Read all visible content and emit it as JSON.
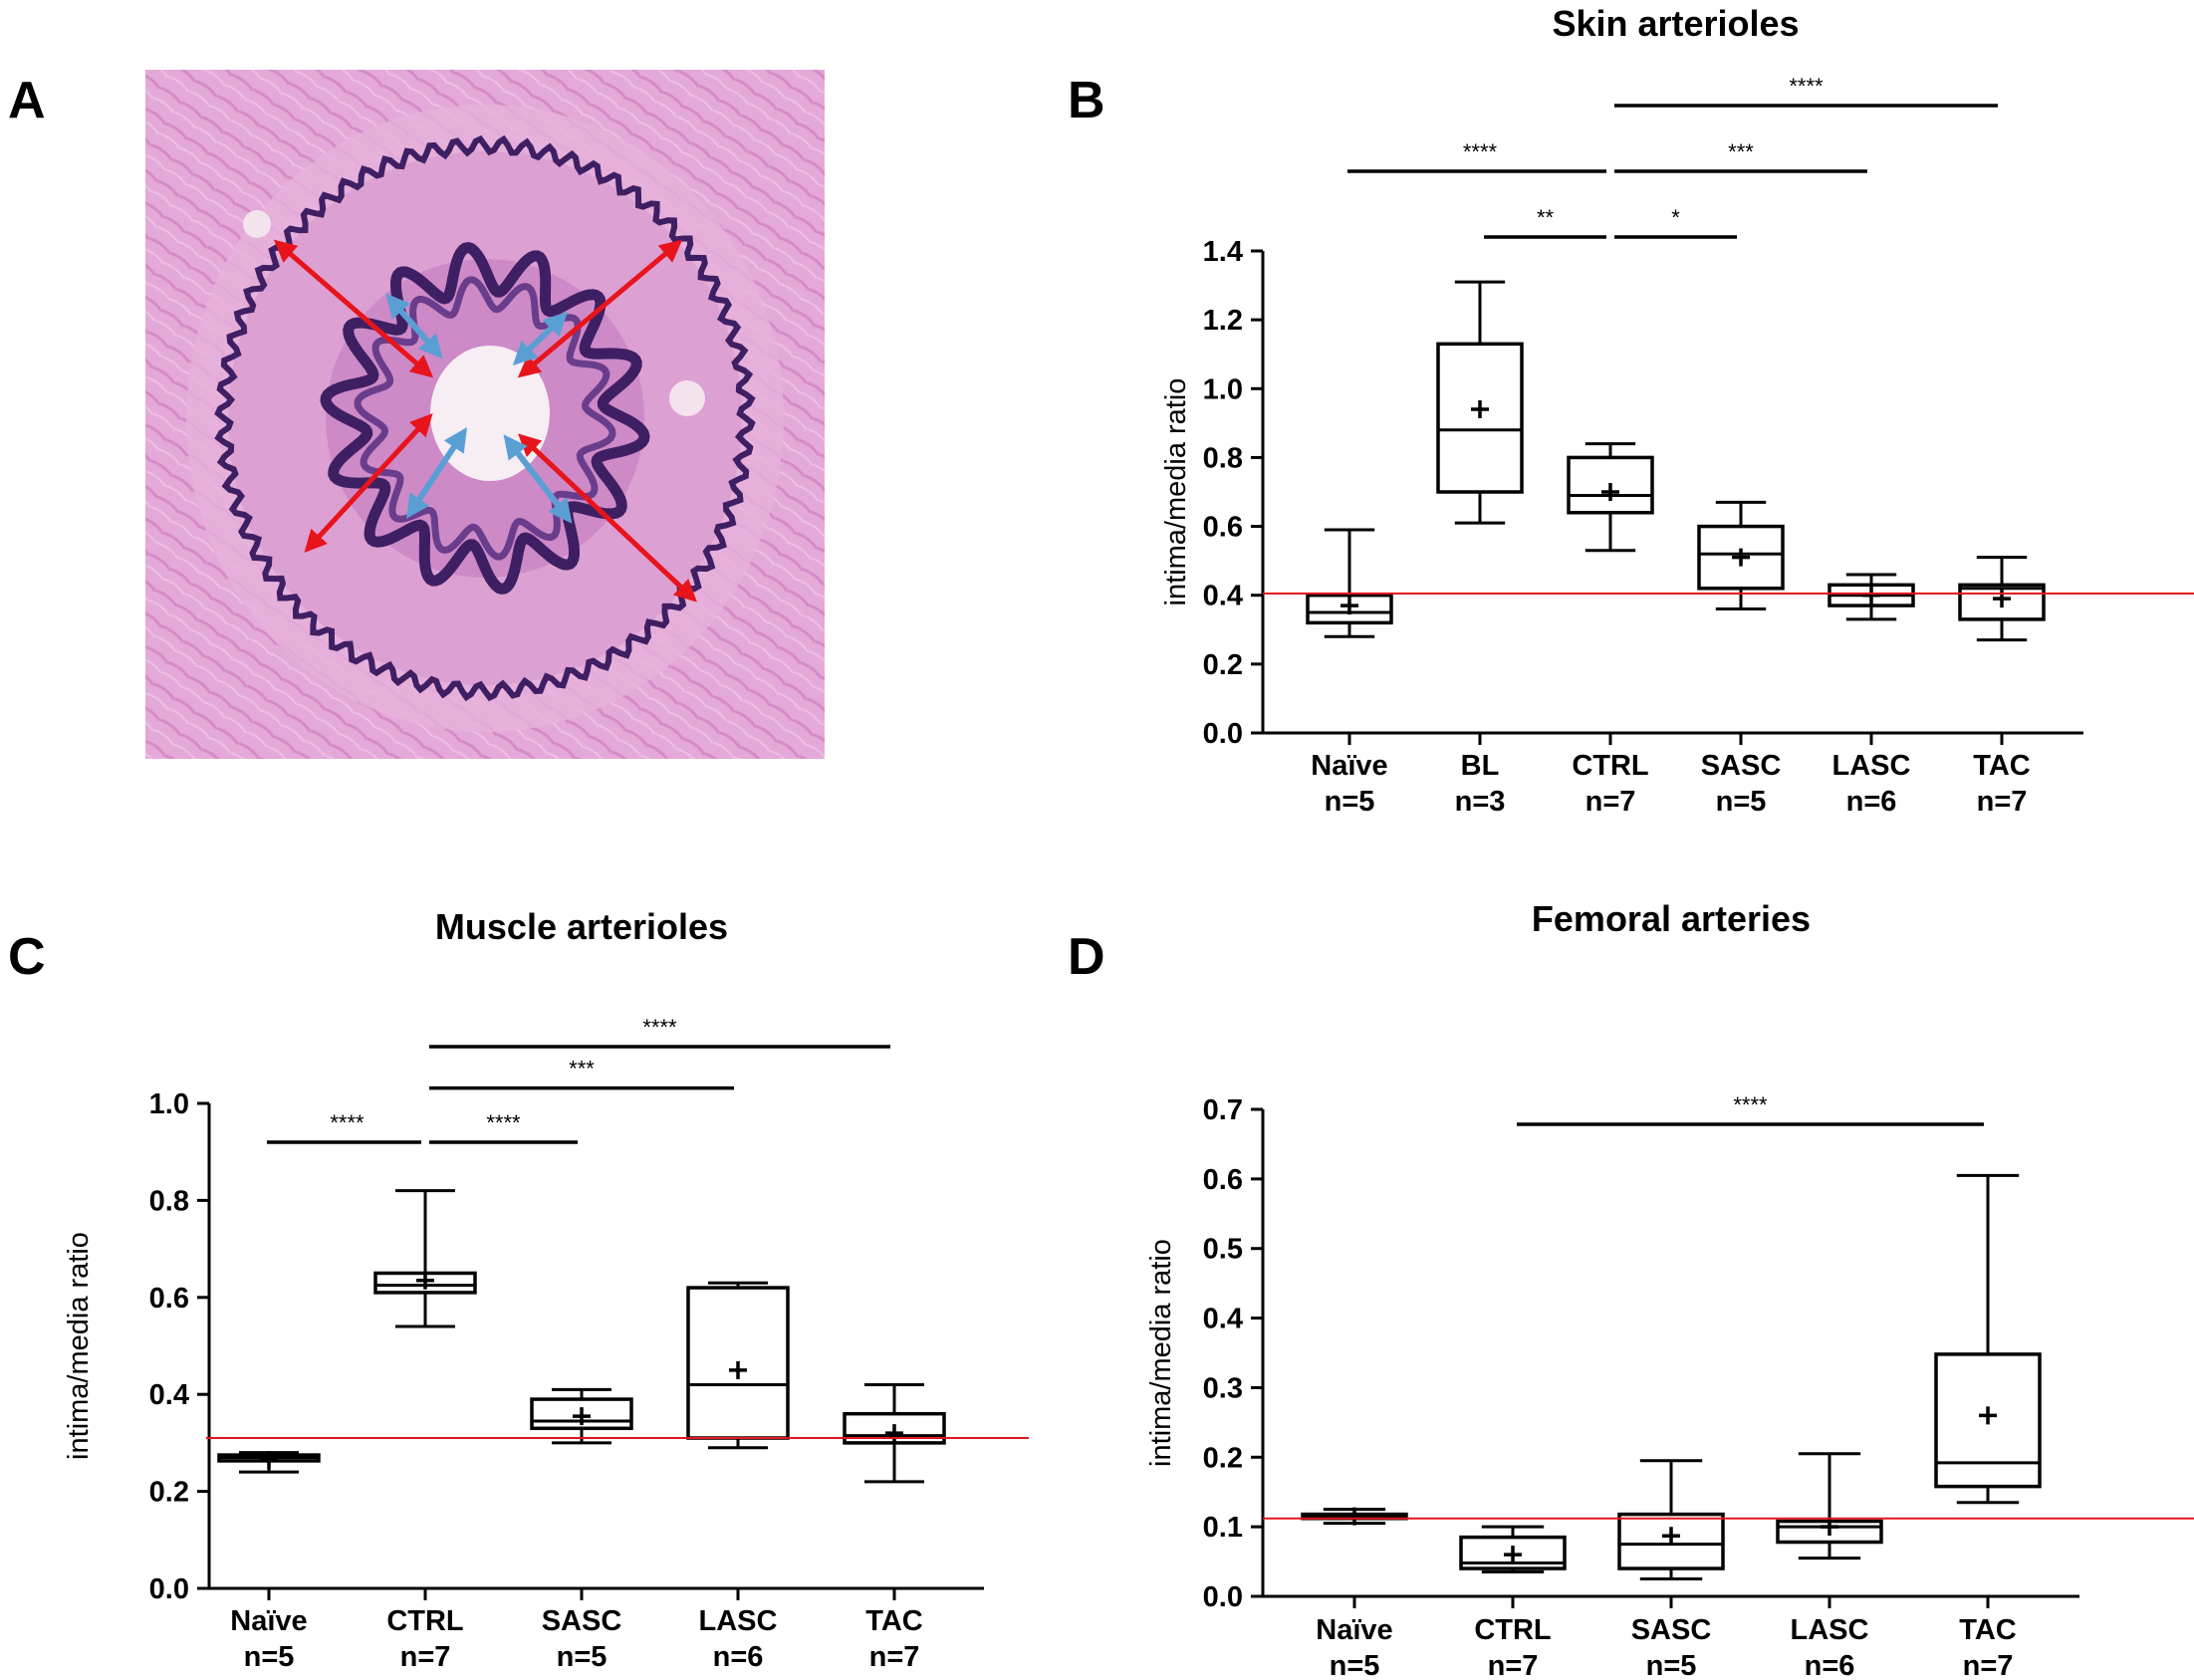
{
  "figure": {
    "panel_labels": [
      "A",
      "B",
      "C",
      "D"
    ],
    "image_panel": {
      "colors": {
        "tissue": "#e2a6d6",
        "elastic": "#3f1f63",
        "red_arrow": "#e8141c",
        "blue_arrow": "#5a9fd4",
        "lumen": "#f6eef2"
      }
    }
  },
  "chart_data": [
    {
      "type": "box",
      "panel": "B",
      "title": "Skin arterioles",
      "ylabel": "intima/media ratio",
      "ylim": [
        0,
        1.4
      ],
      "yticks": [
        "0.0",
        "0.2",
        "0.4",
        "0.6",
        "0.8",
        "1.0",
        "1.2",
        "1.4"
      ],
      "reference_line": 0.405,
      "categories": [
        {
          "name": "Naïve",
          "n": "n=5"
        },
        {
          "name": "BL",
          "n": "n=3"
        },
        {
          "name": "CTRL",
          "n": "n=7"
        },
        {
          "name": "SASC",
          "n": "n=5"
        },
        {
          "name": "LASC",
          "n": "n=6"
        },
        {
          "name": "TAC",
          "n": "n=7"
        }
      ],
      "boxes": [
        {
          "min": 0.28,
          "q1": 0.32,
          "median": 0.35,
          "q3": 0.4,
          "max": 0.59,
          "mean": 0.37
        },
        {
          "min": 0.61,
          "q1": 0.7,
          "median": 0.88,
          "q3": 1.13,
          "max": 1.31,
          "mean": 0.94
        },
        {
          "min": 0.53,
          "q1": 0.64,
          "median": 0.69,
          "q3": 0.8,
          "max": 0.84,
          "mean": 0.7
        },
        {
          "min": 0.36,
          "q1": 0.42,
          "median": 0.52,
          "q3": 0.6,
          "max": 0.67,
          "mean": 0.51
        },
        {
          "min": 0.33,
          "q1": 0.37,
          "median": 0.4,
          "q3": 0.43,
          "max": 0.46,
          "mean": 0.4
        },
        {
          "min": 0.27,
          "q1": 0.33,
          "median": 0.42,
          "q3": 0.43,
          "max": 0.51,
          "mean": 0.39
        }
      ],
      "significance": [
        {
          "from": 2,
          "to": 5,
          "label": "****",
          "level": 4
        },
        {
          "from": 0,
          "to": 2,
          "label": "****",
          "level": 2
        },
        {
          "from": 2,
          "to": 4,
          "label": "***",
          "level": 2
        },
        {
          "from": 1,
          "to": 2,
          "label": "**",
          "level": 0
        },
        {
          "from": 2,
          "to": 3,
          "label": "*",
          "level": 0
        }
      ]
    },
    {
      "type": "box",
      "panel": "C",
      "title": "Muscle arterioles",
      "ylabel": "intima/media ratio",
      "ylim": [
        0,
        1.0
      ],
      "yticks": [
        "0.0",
        "0.2",
        "0.4",
        "0.6",
        "0.8",
        "1.0"
      ],
      "reference_line": 0.31,
      "categories": [
        {
          "name": "Naïve",
          "n": "n=5"
        },
        {
          "name": "CTRL",
          "n": "n=7"
        },
        {
          "name": "SASC",
          "n": "n=5"
        },
        {
          "name": "LASC",
          "n": "n=6"
        },
        {
          "name": "TAC",
          "n": "n=7"
        }
      ],
      "boxes": [
        {
          "min": 0.24,
          "q1": 0.263,
          "median": 0.27,
          "q3": 0.275,
          "max": 0.28,
          "mean": 0.265
        },
        {
          "min": 0.54,
          "q1": 0.61,
          "median": 0.625,
          "q3": 0.65,
          "max": 0.82,
          "mean": 0.635
        },
        {
          "min": 0.3,
          "q1": 0.33,
          "median": 0.345,
          "q3": 0.39,
          "max": 0.41,
          "mean": 0.355
        },
        {
          "min": 0.29,
          "q1": 0.31,
          "median": 0.42,
          "q3": 0.62,
          "max": 0.63,
          "mean": 0.45
        },
        {
          "min": 0.22,
          "q1": 0.3,
          "median": 0.315,
          "q3": 0.36,
          "max": 0.42,
          "mean": 0.32
        }
      ],
      "significance": [
        {
          "from": 1,
          "to": 4,
          "label": "****",
          "level": 3
        },
        {
          "from": 1,
          "to": 3,
          "label": "***",
          "level": 1.7
        },
        {
          "from": 0,
          "to": 1,
          "label": "****",
          "level": 0
        },
        {
          "from": 1,
          "to": 2,
          "label": "****",
          "level": 0
        }
      ]
    },
    {
      "type": "box",
      "panel": "D",
      "title": "Femoral arteries",
      "ylabel": "intima/media ratio",
      "ylim": [
        0,
        0.7
      ],
      "yticks": [
        "0.0",
        "0.1",
        "0.2",
        "0.3",
        "0.4",
        "0.5",
        "0.6",
        "0.7"
      ],
      "reference_line": 0.112,
      "categories": [
        {
          "name": "Naïve",
          "n": "n=5"
        },
        {
          "name": "CTRL",
          "n": "n=7"
        },
        {
          "name": "SASC",
          "n": "n=5"
        },
        {
          "name": "LASC",
          "n": "n=6"
        },
        {
          "name": "TAC",
          "n": "n=7"
        }
      ],
      "boxes": [
        {
          "min": 0.105,
          "q1": 0.112,
          "median": 0.115,
          "q3": 0.118,
          "max": 0.125,
          "mean": 0.115
        },
        {
          "min": 0.035,
          "q1": 0.04,
          "median": 0.048,
          "q3": 0.085,
          "max": 0.1,
          "mean": 0.06
        },
        {
          "min": 0.025,
          "q1": 0.04,
          "median": 0.075,
          "q3": 0.118,
          "max": 0.195,
          "mean": 0.087
        },
        {
          "min": 0.055,
          "q1": 0.078,
          "median": 0.1,
          "q3": 0.108,
          "max": 0.205,
          "mean": 0.1
        },
        {
          "min": 0.135,
          "q1": 0.158,
          "median": 0.192,
          "q3": 0.348,
          "max": 0.605,
          "mean": 0.26
        }
      ],
      "significance": [
        {
          "from": 1,
          "to": 4,
          "label": "****",
          "level": 0
        }
      ]
    }
  ]
}
